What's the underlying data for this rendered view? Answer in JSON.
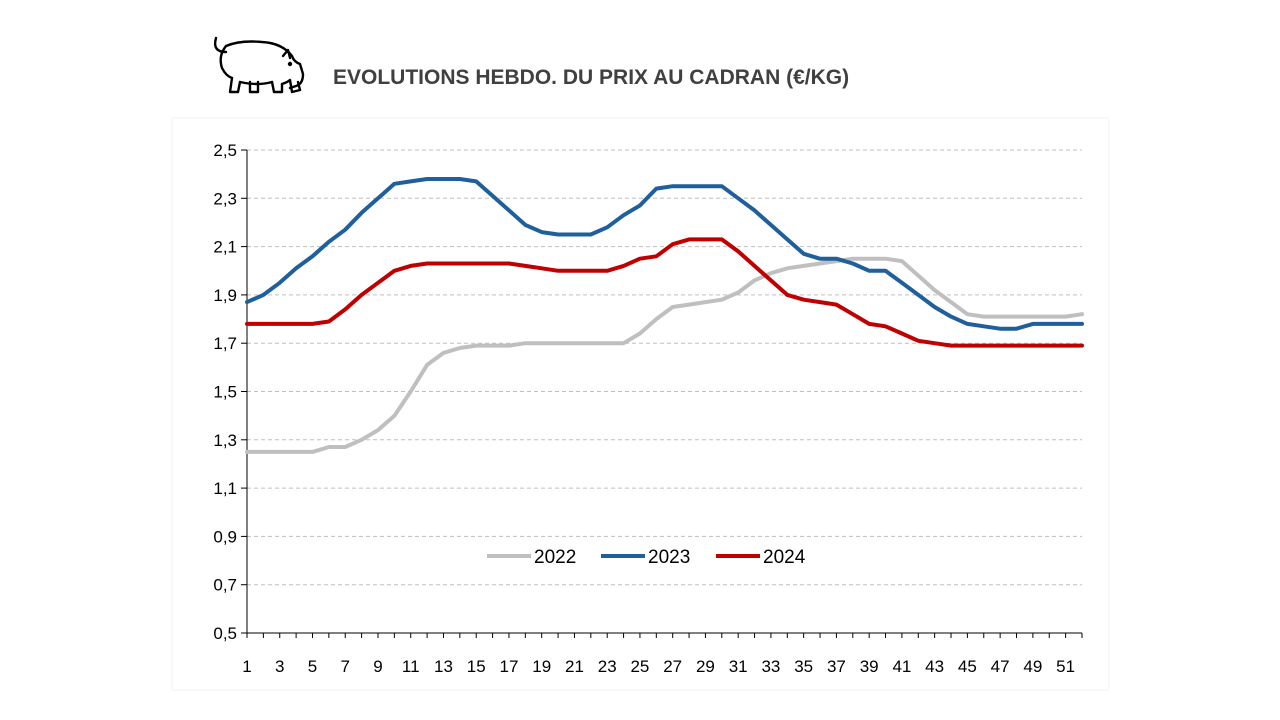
{
  "chart_data": {
    "type": "line",
    "title": "EVOLUTIONS HEBDO. DU PRIX AU CADRAN (€/KG)",
    "xlabel": "",
    "ylabel": "",
    "x": [
      1,
      2,
      3,
      4,
      5,
      6,
      7,
      8,
      9,
      10,
      11,
      12,
      13,
      14,
      15,
      16,
      17,
      18,
      19,
      20,
      21,
      22,
      23,
      24,
      25,
      26,
      27,
      28,
      29,
      30,
      31,
      32,
      33,
      34,
      35,
      36,
      37,
      38,
      39,
      40,
      41,
      42,
      43,
      44,
      45,
      46,
      47,
      48,
      49,
      50,
      51,
      52
    ],
    "x_tick_labels": [
      "1",
      "3",
      "5",
      "7",
      "9",
      "11",
      "13",
      "15",
      "17",
      "19",
      "21",
      "23",
      "25",
      "27",
      "29",
      "31",
      "33",
      "35",
      "37",
      "39",
      "41",
      "43",
      "45",
      "47",
      "49",
      "51"
    ],
    "ylim": [
      0.5,
      2.5
    ],
    "y_tick_labels": [
      "0,5",
      "0,7",
      "0,9",
      "1,1",
      "1,3",
      "1,5",
      "1,7",
      "1,9",
      "2,1",
      "2,3",
      "2,5"
    ],
    "grid": "horizontal-dashed",
    "legend_position": "center",
    "icon": "pig-icon",
    "series": [
      {
        "name": "2022",
        "color": "#BFBFBF",
        "values": [
          1.25,
          1.25,
          1.25,
          1.25,
          1.25,
          1.27,
          1.27,
          1.3,
          1.34,
          1.4,
          1.5,
          1.61,
          1.66,
          1.68,
          1.69,
          1.69,
          1.69,
          1.7,
          1.7,
          1.7,
          1.7,
          1.7,
          1.7,
          1.7,
          1.74,
          1.8,
          1.85,
          1.86,
          1.87,
          1.88,
          1.91,
          1.96,
          1.99,
          2.01,
          2.02,
          2.03,
          2.04,
          2.05,
          2.05,
          2.05,
          2.04,
          1.98,
          1.92,
          1.87,
          1.82,
          1.81,
          1.81,
          1.81,
          1.81,
          1.81,
          1.81,
          1.82
        ]
      },
      {
        "name": "2023",
        "color": "#1F5F9C",
        "values": [
          1.87,
          1.9,
          1.95,
          2.01,
          2.06,
          2.12,
          2.17,
          2.24,
          2.3,
          2.36,
          2.37,
          2.38,
          2.38,
          2.38,
          2.37,
          2.31,
          2.25,
          2.19,
          2.16,
          2.15,
          2.15,
          2.15,
          2.18,
          2.23,
          2.27,
          2.34,
          2.35,
          2.35,
          2.35,
          2.35,
          2.3,
          2.25,
          2.19,
          2.13,
          2.07,
          2.05,
          2.05,
          2.03,
          2.0,
          2.0,
          1.95,
          1.9,
          1.85,
          1.81,
          1.78,
          1.77,
          1.76,
          1.76,
          1.78,
          1.78,
          1.78,
          1.78
        ]
      },
      {
        "name": "2024",
        "color": "#C00000",
        "values": [
          1.78,
          1.78,
          1.78,
          1.78,
          1.78,
          1.79,
          1.84,
          1.9,
          1.95,
          2.0,
          2.02,
          2.03,
          2.03,
          2.03,
          2.03,
          2.03,
          2.03,
          2.02,
          2.01,
          2.0,
          2.0,
          2.0,
          2.0,
          2.02,
          2.05,
          2.06,
          2.11,
          2.13,
          2.13,
          2.13,
          2.08,
          2.02,
          1.96,
          1.9,
          1.88,
          1.87,
          1.86,
          1.82,
          1.78,
          1.77,
          1.74,
          1.71,
          1.7,
          1.69,
          1.69,
          1.69,
          1.69,
          1.69,
          1.69,
          1.69,
          1.69,
          1.69
        ]
      }
    ]
  }
}
